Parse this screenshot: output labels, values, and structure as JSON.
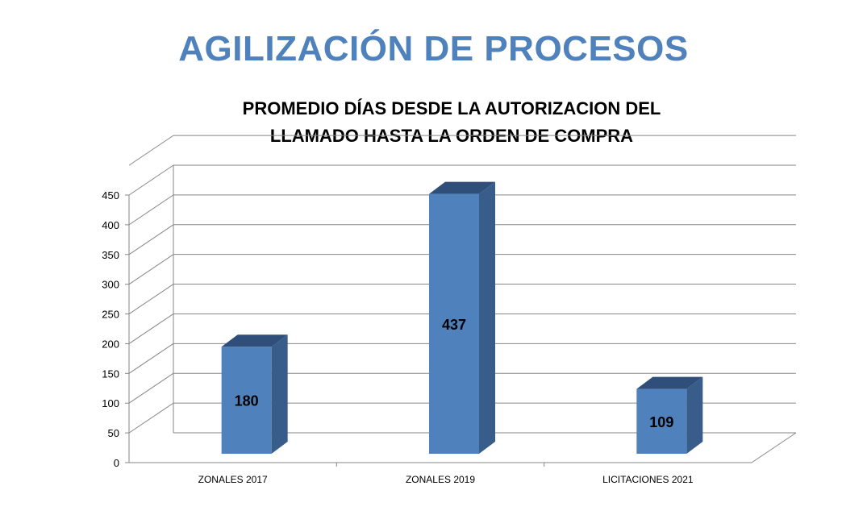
{
  "slide_title": "AGILIZACIÓN DE PROCESOS",
  "chart_data": {
    "type": "bar",
    "title_lines": [
      "PROMEDIO DÍAS DESDE LA AUTORIZACION DEL",
      "LLAMADO HASTA LA ORDEN DE COMPRA"
    ],
    "categories": [
      "ZONALES 2017",
      "ZONALES 2019",
      "LICITACIONES 2021"
    ],
    "values": [
      180,
      437,
      109
    ],
    "data_labels": [
      "180",
      "437",
      "109"
    ],
    "ylim": [
      0,
      450
    ],
    "yticks": [
      0,
      50,
      100,
      150,
      200,
      250,
      300,
      350,
      400,
      450
    ],
    "grid": true,
    "three_d": true,
    "legend": false,
    "colors": {
      "bar_front": "#4f81bd",
      "bar_side": "#385d8a",
      "bar_top": "#2f4f7a",
      "title": "#4f81bd",
      "gridline": "#868686"
    }
  }
}
